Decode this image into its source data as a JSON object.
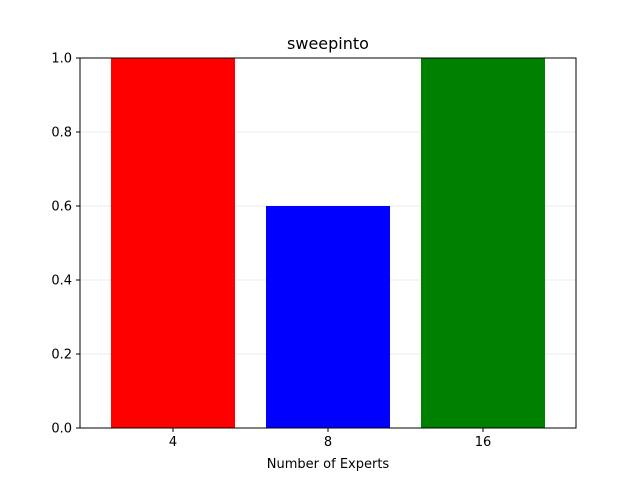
{
  "chart_data": {
    "type": "bar",
    "title": "sweepinto",
    "xlabel": "Number of Experts",
    "ylabel": "",
    "categories": [
      "4",
      "8",
      "16"
    ],
    "values": [
      1.0,
      0.6,
      1.0
    ],
    "colors": [
      "#ff0000",
      "#0000ff",
      "#008000"
    ],
    "ylim": [
      0,
      1.0
    ],
    "yticks": [
      "0.0",
      "0.2",
      "0.4",
      "0.6",
      "0.8",
      "1.0"
    ],
    "grid": true,
    "grid_color": "#ebebeb"
  }
}
